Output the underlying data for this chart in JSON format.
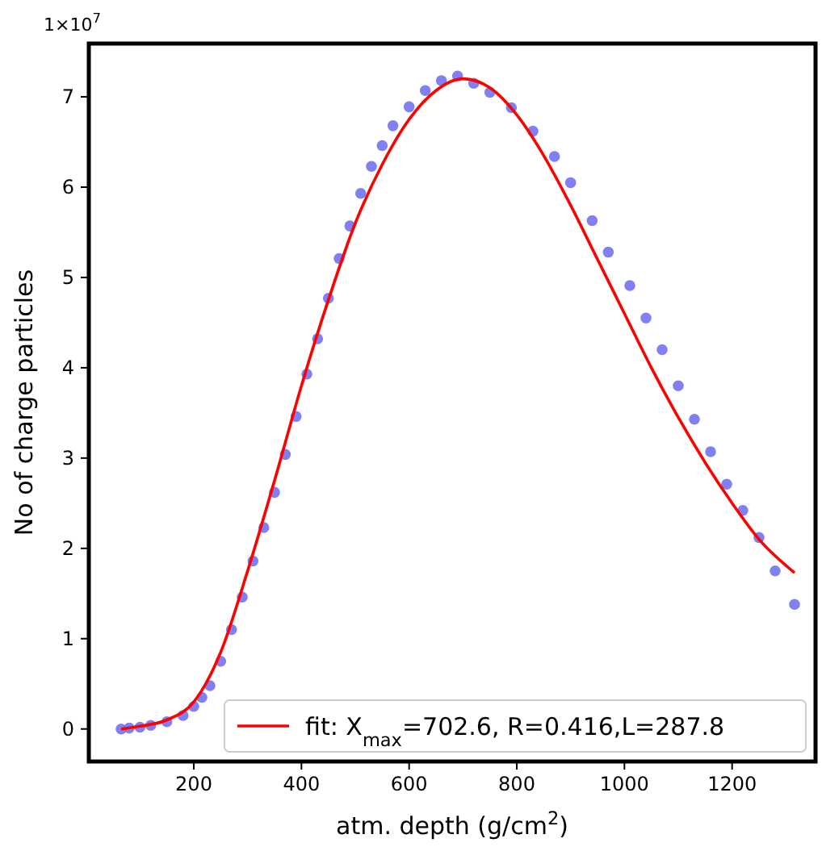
{
  "chart_data": {
    "type": "scatter",
    "xlabel": "atm. depth (g/cm$^{2}$)",
    "ylabel": "No of charge particles",
    "annotations": [
      "1×10$^{7}$"
    ],
    "xlim": [
      5,
      1355
    ],
    "ylim": [
      -0.36,
      7.59
    ],
    "xticks": [
      200,
      400,
      600,
      800,
      1000,
      1200
    ],
    "yticks": [
      0,
      1,
      2,
      3,
      4,
      5,
      6,
      7
    ],
    "grid": false,
    "legend": "bottom right",
    "series": [
      {
        "color": "#6a6af0",
        "marker": "circle",
        "x": [
          65,
          80,
          100,
          120,
          150,
          180,
          200,
          215,
          230,
          250,
          270,
          290,
          310,
          330,
          350,
          370,
          390,
          410,
          430,
          450,
          470,
          490,
          510,
          530,
          550,
          570,
          600,
          630,
          660,
          690,
          720,
          750,
          790,
          830,
          870,
          900,
          940,
          970,
          1010,
          1040,
          1070,
          1100,
          1130,
          1160,
          1190,
          1220,
          1250,
          1280,
          1316
        ],
        "values": [
          0,
          0.01,
          0.02,
          0.04,
          0.08,
          0.15,
          0.25,
          0.35,
          0.48,
          0.75,
          1.1,
          1.46,
          1.86,
          2.23,
          2.62,
          3.04,
          3.46,
          3.93,
          4.32,
          4.77,
          5.21,
          5.57,
          5.93,
          6.23,
          6.46,
          6.68,
          6.89,
          7.07,
          7.18,
          7.23,
          7.15,
          7.05,
          6.88,
          6.62,
          6.34,
          6.05,
          5.63,
          5.28,
          4.91,
          4.55,
          4.2,
          3.8,
          3.43,
          3.07,
          2.71,
          2.42,
          2.12,
          1.75,
          1.38
        ]
      },
      {
        "type": "line",
        "name": "fit: X$_{max}$=702.6, R=0.416,L=287.8",
        "color": "#ff0000",
        "marker": "none",
        "line_style": "solid",
        "x": [
          65,
          100,
          150,
          200,
          250,
          300,
          350,
          400,
          450,
          500,
          550,
          600,
          650,
          700,
          750,
          800,
          850,
          900,
          950,
          1000,
          1050,
          1100,
          1150,
          1200,
          1250,
          1316
        ],
        "values": [
          0,
          0.03,
          0.1,
          0.3,
          0.85,
          1.75,
          2.75,
          3.8,
          4.75,
          5.6,
          6.25,
          6.75,
          7.07,
          7.2,
          7.1,
          6.8,
          6.35,
          5.8,
          5.2,
          4.6,
          4.0,
          3.45,
          2.95,
          2.5,
          2.1,
          1.73
        ]
      }
    ]
  }
}
